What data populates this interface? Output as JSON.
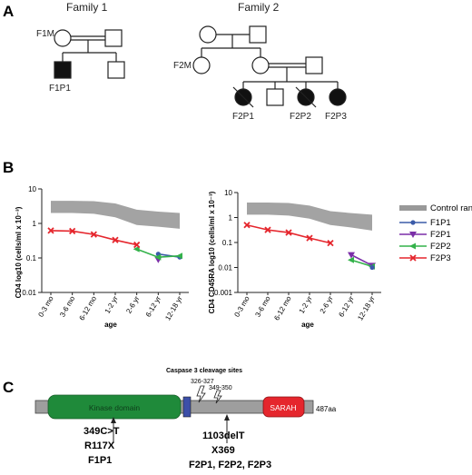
{
  "panels": {
    "a": "A",
    "b": "B",
    "c": "C"
  },
  "family1": {
    "title": "Family 1",
    "labels": {
      "mother": "F1M",
      "patient": "F1P1"
    }
  },
  "family2": {
    "title": "Family 2",
    "labels": {
      "mother": "F2M",
      "p1": "F2P1",
      "p2": "F2P2",
      "p3": "F2P3"
    }
  },
  "chart_data": [
    {
      "type": "line",
      "ylabel": "CD4 log10 (cells/ml x 10⁻³)",
      "xlabel": "age",
      "yscale": "log",
      "ylim": [
        0.01,
        10
      ],
      "yticks": [
        "10",
        "1",
        "0.1",
        "0.01"
      ],
      "categories": [
        "0-3 mo",
        "3-6 mo",
        "6-12 mo",
        "1-2 yr",
        "2-6 yr",
        "6-12 yr",
        "12-18 yr"
      ],
      "control_range": {
        "lower": [
          2.0,
          2.0,
          1.9,
          1.5,
          0.9,
          0.8,
          0.7
        ],
        "upper": [
          4.5,
          4.5,
          4.4,
          3.8,
          2.5,
          2.2,
          2.0
        ]
      },
      "series": [
        {
          "name": "F1P1",
          "points": [
            [
              5,
              0.13
            ],
            [
              6,
              0.105
            ]
          ]
        },
        {
          "name": "F2P1",
          "points": [
            [
              5,
              0.09
            ]
          ]
        },
        {
          "name": "F2P2",
          "points": [
            [
              4,
              0.18
            ],
            [
              5,
              0.105
            ],
            [
              6,
              0.115
            ]
          ]
        },
        {
          "name": "F2P3",
          "points": [
            [
              0,
              0.62
            ],
            [
              1,
              0.6
            ],
            [
              2,
              0.48
            ],
            [
              3,
              0.33
            ],
            [
              4,
              0.24
            ]
          ]
        }
      ]
    },
    {
      "type": "line",
      "ylabel": "CD4 CD45RA log10 (cells/ml x 10⁻³)",
      "xlabel": "age",
      "yscale": "log",
      "ylim": [
        0.001,
        10
      ],
      "yticks": [
        "10",
        "1",
        "0.1",
        "0.01",
        "0.001"
      ],
      "categories": [
        "0-3 mo",
        "3-6 mo",
        "6-12 mo",
        "1-2 yr",
        "2-6 yr",
        "6-12 yr",
        "12-18 yr"
      ],
      "control_range": {
        "lower": [
          1.3,
          1.3,
          1.2,
          0.9,
          0.5,
          0.4,
          0.3
        ],
        "upper": [
          4.0,
          4.0,
          3.8,
          3.0,
          1.8,
          1.5,
          1.3
        ]
      },
      "series": [
        {
          "name": "F2P1",
          "points": [
            [
              5,
              0.032
            ],
            [
              6,
              0.012
            ]
          ]
        },
        {
          "name": "F2P2",
          "points": [
            [
              5,
              0.02
            ],
            [
              6,
              0.011
            ]
          ]
        },
        {
          "name": "F1P1",
          "points": [
            [
              6,
              0.01
            ]
          ]
        },
        {
          "name": "F2P3",
          "points": [
            [
              0,
              0.5
            ],
            [
              1,
              0.32
            ],
            [
              2,
              0.25
            ],
            [
              3,
              0.15
            ],
            [
              4,
              0.095
            ]
          ]
        }
      ]
    }
  ],
  "legend": {
    "control": "Control range",
    "series": [
      {
        "name": "F1P1",
        "color": "#3b5ba9",
        "marker": "circle"
      },
      {
        "name": "F2P1",
        "color": "#7b2fa8",
        "marker": "triangle-down"
      },
      {
        "name": "F2P2",
        "color": "#33b24a",
        "marker": "triangle-left"
      },
      {
        "name": "F2P3",
        "color": "#e5262d",
        "marker": "cross"
      }
    ]
  },
  "gene": {
    "caspase_title": "Caspase 3 cleavage sites",
    "site1": "326-327",
    "site2": "349-350",
    "kinase": "Kinase domain",
    "sarah": "SARAH",
    "length": "487aa",
    "mutation1": [
      "349C>T",
      "R117X",
      "F1P1"
    ],
    "mutation2": [
      "1103delT",
      "X369",
      "F2P1, F2P2, F2P3"
    ]
  },
  "colors": {
    "control": "#999999",
    "kinase": "#1f8a3a",
    "sarah": "#e5262d",
    "protein": "#9e9e9e",
    "linker": "#3c4fa8"
  }
}
